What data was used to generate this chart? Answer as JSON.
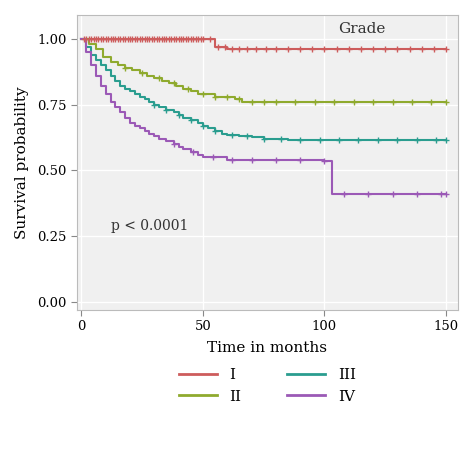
{
  "title": "",
  "xlabel": "Time in months",
  "ylabel": "Survival probability",
  "xlim": [
    -2,
    155
  ],
  "ylim": [
    -0.03,
    1.09
  ],
  "yticks": [
    0.0,
    0.25,
    0.5,
    0.75,
    1.0
  ],
  "xticks": [
    0,
    50,
    100,
    150
  ],
  "annotation": "p < 0.0001",
  "legend_title": "Grade",
  "background_color": "#ffffff",
  "plot_bg_color": "#f0f0f0",
  "grid_color": "#ffffff",
  "curves": {
    "I": {
      "color": "#cd5c5c",
      "steps": [
        [
          0,
          1.0
        ],
        [
          50,
          1.0
        ],
        [
          55,
          0.97
        ],
        [
          57,
          0.97
        ],
        [
          60,
          0.96
        ],
        [
          150,
          0.96
        ]
      ],
      "censors": [
        1,
        2,
        3,
        4,
        5,
        6,
        7,
        8,
        9,
        10,
        11,
        12,
        13,
        14,
        15,
        16,
        17,
        18,
        19,
        20,
        21,
        22,
        23,
        24,
        25,
        26,
        27,
        28,
        29,
        30,
        31,
        32,
        33,
        34,
        35,
        36,
        37,
        38,
        39,
        40,
        41,
        42,
        43,
        44,
        45,
        46,
        47,
        48,
        49,
        50,
        53,
        56,
        59,
        62,
        65,
        68,
        72,
        76,
        80,
        85,
        90,
        95,
        100,
        105,
        110,
        115,
        120,
        125,
        130,
        135,
        140,
        145,
        150
      ]
    },
    "II": {
      "color": "#8faa2e",
      "steps": [
        [
          0,
          1.0
        ],
        [
          3,
          0.98
        ],
        [
          6,
          0.96
        ],
        [
          9,
          0.93
        ],
        [
          12,
          0.91
        ],
        [
          15,
          0.9
        ],
        [
          18,
          0.89
        ],
        [
          21,
          0.88
        ],
        [
          24,
          0.87
        ],
        [
          27,
          0.86
        ],
        [
          30,
          0.85
        ],
        [
          33,
          0.84
        ],
        [
          36,
          0.83
        ],
        [
          39,
          0.82
        ],
        [
          42,
          0.81
        ],
        [
          45,
          0.8
        ],
        [
          48,
          0.79
        ],
        [
          50,
          0.79
        ],
        [
          55,
          0.78
        ],
        [
          60,
          0.78
        ],
        [
          63,
          0.77
        ],
        [
          66,
          0.76
        ],
        [
          75,
          0.76
        ],
        [
          150,
          0.76
        ]
      ],
      "censors": [
        18,
        25,
        32,
        38,
        44,
        50,
        55,
        60,
        65,
        70,
        75,
        80,
        88,
        96,
        104,
        112,
        120,
        128,
        136,
        144,
        150
      ]
    },
    "III": {
      "color": "#2a9d8f",
      "steps": [
        [
          0,
          1.0
        ],
        [
          2,
          0.97
        ],
        [
          4,
          0.94
        ],
        [
          6,
          0.92
        ],
        [
          8,
          0.9
        ],
        [
          10,
          0.88
        ],
        [
          12,
          0.86
        ],
        [
          14,
          0.84
        ],
        [
          16,
          0.82
        ],
        [
          18,
          0.81
        ],
        [
          20,
          0.8
        ],
        [
          22,
          0.79
        ],
        [
          24,
          0.78
        ],
        [
          26,
          0.77
        ],
        [
          28,
          0.76
        ],
        [
          30,
          0.75
        ],
        [
          32,
          0.74
        ],
        [
          35,
          0.73
        ],
        [
          38,
          0.72
        ],
        [
          40,
          0.71
        ],
        [
          42,
          0.7
        ],
        [
          45,
          0.69
        ],
        [
          48,
          0.68
        ],
        [
          50,
          0.67
        ],
        [
          52,
          0.66
        ],
        [
          55,
          0.65
        ],
        [
          58,
          0.64
        ],
        [
          60,
          0.635
        ],
        [
          65,
          0.63
        ],
        [
          70,
          0.625
        ],
        [
          75,
          0.62
        ],
        [
          80,
          0.62
        ],
        [
          85,
          0.615
        ],
        [
          150,
          0.615
        ]
      ],
      "censors": [
        30,
        35,
        40,
        45,
        50,
        55,
        62,
        68,
        75,
        82,
        90,
        98,
        106,
        114,
        122,
        130,
        138,
        146,
        150
      ]
    },
    "IV": {
      "color": "#9b59b6",
      "steps": [
        [
          0,
          1.0
        ],
        [
          2,
          0.95
        ],
        [
          4,
          0.9
        ],
        [
          6,
          0.86
        ],
        [
          8,
          0.82
        ],
        [
          10,
          0.79
        ],
        [
          12,
          0.76
        ],
        [
          14,
          0.74
        ],
        [
          16,
          0.72
        ],
        [
          18,
          0.7
        ],
        [
          20,
          0.68
        ],
        [
          22,
          0.67
        ],
        [
          24,
          0.66
        ],
        [
          26,
          0.65
        ],
        [
          28,
          0.64
        ],
        [
          30,
          0.63
        ],
        [
          32,
          0.62
        ],
        [
          35,
          0.61
        ],
        [
          38,
          0.6
        ],
        [
          40,
          0.59
        ],
        [
          42,
          0.58
        ],
        [
          45,
          0.57
        ],
        [
          48,
          0.56
        ],
        [
          50,
          0.55
        ],
        [
          52,
          0.55
        ],
        [
          55,
          0.55
        ],
        [
          57,
          0.55
        ],
        [
          60,
          0.54
        ],
        [
          63,
          0.54
        ],
        [
          66,
          0.54
        ],
        [
          70,
          0.54
        ],
        [
          75,
          0.54
        ],
        [
          80,
          0.54
        ],
        [
          85,
          0.54
        ],
        [
          90,
          0.54
        ],
        [
          95,
          0.54
        ],
        [
          100,
          0.535
        ],
        [
          103,
          0.41
        ],
        [
          150,
          0.41
        ]
      ],
      "censors": [
        38,
        46,
        54,
        62,
        70,
        80,
        90,
        100,
        108,
        118,
        128,
        138,
        148,
        150
      ]
    }
  }
}
